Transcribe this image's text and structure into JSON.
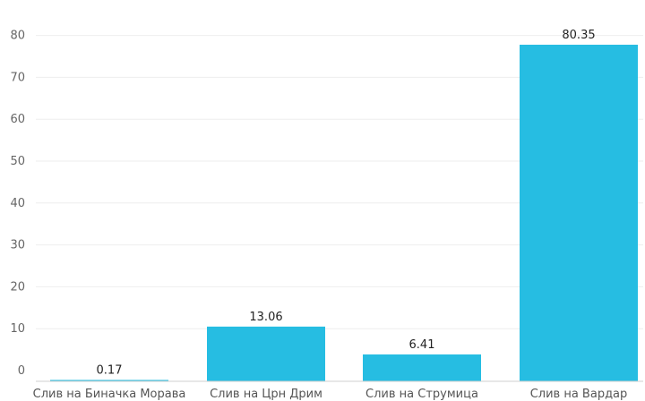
{
  "chart_data": {
    "type": "bar",
    "title": "",
    "xlabel": "",
    "ylabel": "",
    "categories": [
      "Слив на Бинaчка Морава",
      "Слив на Црн Дрим",
      "Слив на Струмица",
      "Слив на Вардар"
    ],
    "values": [
      0.17,
      13.06,
      6.41,
      80.35
    ],
    "value_labels": [
      "0.17",
      "13.06",
      "6.41",
      "80.35"
    ],
    "ylim": [
      0,
      85
    ],
    "yticks": [
      0,
      10,
      20,
      30,
      40,
      50,
      60,
      70,
      80
    ],
    "grid": true,
    "legend": "none",
    "bar_color": "#26bde2"
  }
}
